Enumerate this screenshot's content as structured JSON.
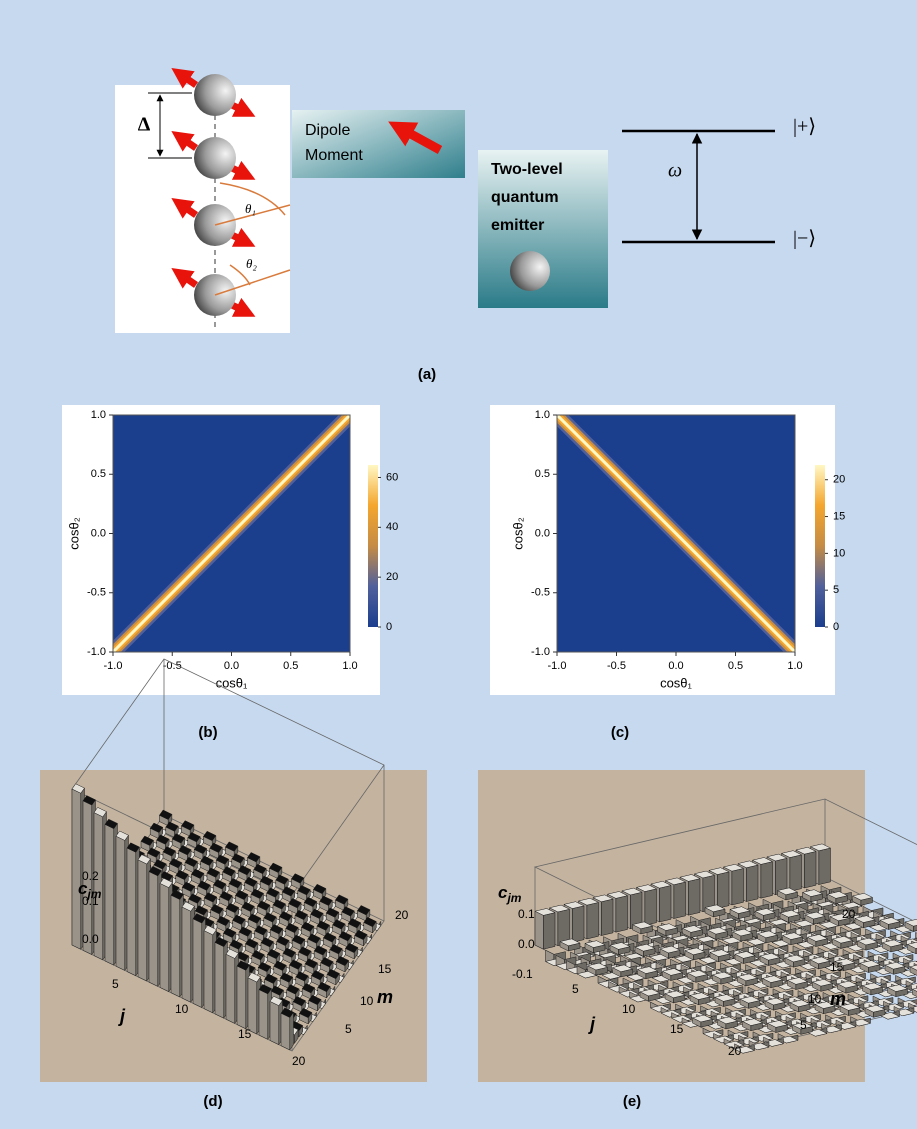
{
  "panel_a": {
    "delta": "Δ",
    "theta1": "θ₁",
    "theta2": "θ₂",
    "dipole": [
      "Dipole",
      "Moment"
    ],
    "emitter": [
      "Two-level",
      "quantum",
      "emitter"
    ],
    "omega": "ω",
    "plus": "|+⟩",
    "minus": "|−⟩",
    "caption": "(a)"
  },
  "chart_data": [
    {
      "type": "heatmap",
      "xlabel": "cosθ₁",
      "ylabel": "cosθ₂",
      "diagonal": "rising",
      "xlim": [
        -1,
        1
      ],
      "ylim": [
        -1,
        1
      ],
      "xticks": [
        {
          "value": -1,
          "label": "-1.0"
        },
        -0.5,
        {
          "value": 0,
          "label": "0.0"
        },
        0.5,
        {
          "value": 1,
          "label": "1.0"
        }
      ],
      "yticks": [
        {
          "value": -1,
          "label": "-1.0"
        },
        -0.5,
        {
          "value": 0,
          "label": "0.0"
        },
        0.5,
        {
          "value": 1,
          "label": "1.0"
        }
      ],
      "clim": [
        0,
        65
      ],
      "cticks": [
        0,
        20,
        40,
        60
      ],
      "colormap": [
        "#1b3e8d",
        "#50609c",
        "#c58c45",
        "#f4a62e",
        "#fff7c4"
      ],
      "caption": "(b)"
    },
    {
      "type": "heatmap",
      "xlabel": "cosθ₁",
      "ylabel": "cosθ₂",
      "diagonal": "falling",
      "xlim": [
        -1,
        1
      ],
      "ylim": [
        -1,
        1
      ],
      "xticks": [
        {
          "value": -1,
          "label": "-1.0"
        },
        -0.5,
        {
          "value": 0,
          "label": "0.0"
        },
        0.5,
        {
          "value": 1,
          "label": "1.0"
        }
      ],
      "yticks": [
        {
          "value": -1,
          "label": "-1.0"
        },
        -0.5,
        {
          "value": 0,
          "label": "0.0"
        },
        0.5,
        {
          "value": 1,
          "label": "1.0"
        }
      ],
      "clim": [
        0,
        22
      ],
      "cticks": [
        0,
        5,
        10,
        15,
        20
      ],
      "colormap": [
        "#1b3e8d",
        "#50609c",
        "#c58c45",
        "#f4a62e",
        "#fff7c4"
      ],
      "caption": "(c)"
    }
  ],
  "panel_d": {
    "z_label": "c",
    "z_sub": "jm",
    "z_ticks": [
      "0.2",
      "0.1",
      "0.0"
    ],
    "j_label": "j",
    "j_ticks": [
      "5",
      "10",
      "15",
      "20"
    ],
    "m_label": "m",
    "m_ticks": [
      "20",
      "15",
      "10",
      "5"
    ],
    "caption": "(d)"
  },
  "panel_e": {
    "z_label": "c",
    "z_sub": "jm",
    "z_ticks": [
      "0.1",
      "0.0",
      "-0.1"
    ],
    "j_label": "j",
    "j_ticks": [
      "5",
      "10",
      "15",
      "20"
    ],
    "m_label": "m",
    "m_ticks": [
      "20",
      "15",
      "10",
      "5"
    ],
    "caption": "(e)"
  }
}
